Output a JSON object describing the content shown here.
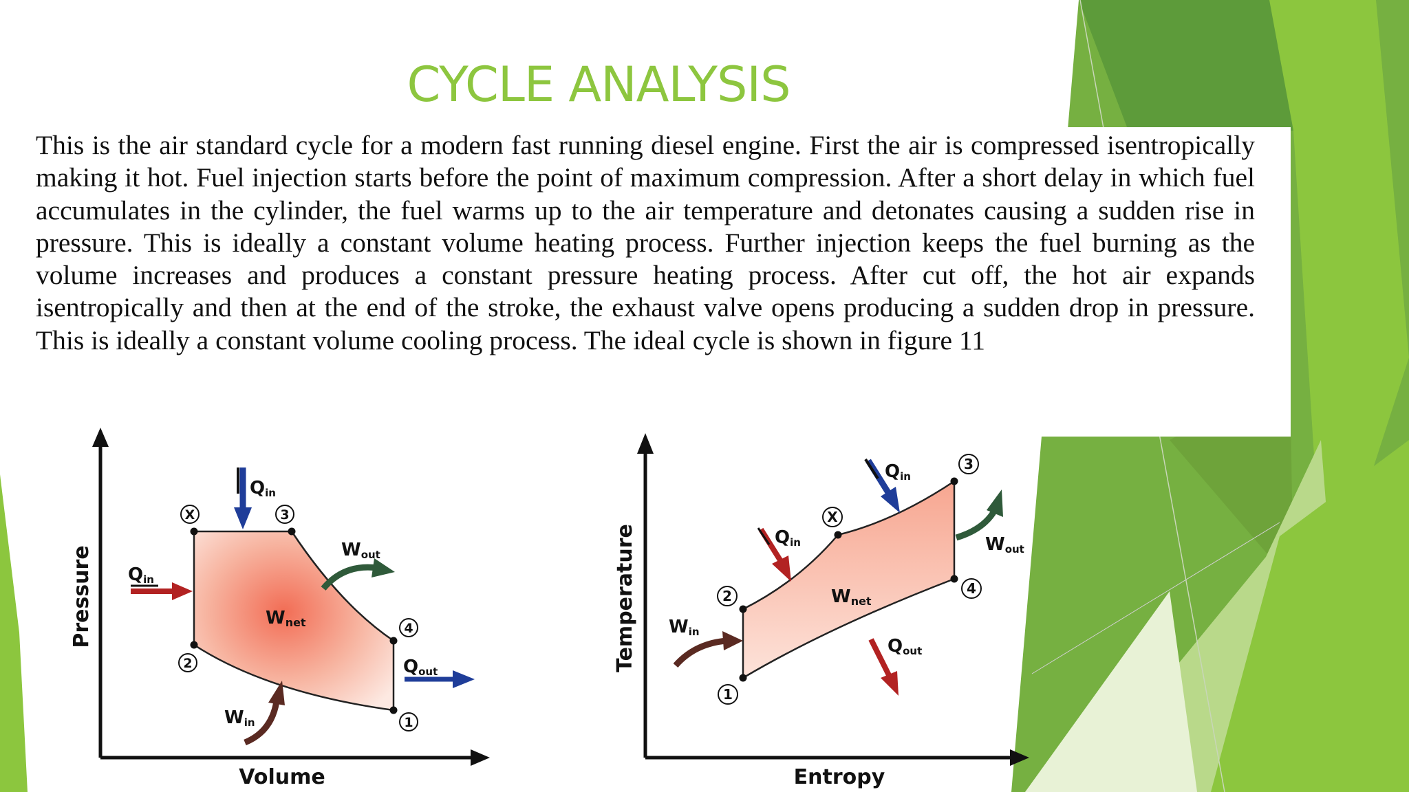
{
  "slide": {
    "title": "CYCLE ANALYSIS",
    "body": "This is the air standard cycle for a modern fast running diesel engine. First the air is compressed isentropically making it hot. Fuel injection starts before the point of maximum compression. After a short delay in which fuel accumulates in the cylinder, the fuel warms up to the air temperature and detonates causing a sudden rise in pressure. This is ideally a constant volume heating process. Further injection keeps the fuel burning as the volume increases and produces a constant pressure heating process. After cut off, the hot air expands isentropically and then at the end of the stroke, the exhaust valve opens producing a sudden drop in pressure. This is ideally a constant volume cooling process.  The ideal cycle is shown in figure 11"
  },
  "pv_diagram": {
    "x_axis": "Volume",
    "y_axis": "Pressure",
    "points": [
      "X",
      "3",
      "2",
      "4",
      "1"
    ],
    "w_net": "W",
    "w_net_sub": "net",
    "q_in_top": "Q",
    "q_in_top_sub": "in",
    "q_in_left": "Q",
    "q_in_left_sub": "in",
    "w_out": "W",
    "w_out_sub": "out",
    "q_out": "Q",
    "q_out_sub": "out",
    "w_in": "W",
    "w_in_sub": "in"
  },
  "ts_diagram": {
    "x_axis": "Entropy",
    "y_axis": "Temperature",
    "points": [
      "3",
      "X",
      "2",
      "4",
      "1"
    ],
    "w_net": "W",
    "w_net_sub": "net",
    "q_in_top": "Q",
    "q_in_top_sub": "in",
    "q_in_left": "Q",
    "q_in_left_sub": "in",
    "w_out": "W",
    "w_out_sub": "out",
    "q_out": "Q",
    "q_out_sub": "out",
    "w_in": "W",
    "w_in_sub": "in"
  },
  "colors": {
    "title": "#8dc63f",
    "fill": "#f7b4a0",
    "heat_in_arrow": "#1f3d99",
    "heat_out_arrow": "#1f3d99",
    "work_out_arrow": "#2f5a3a",
    "work_in_arrow": "#5a2a22",
    "ts_heat_arrow": "#b22222"
  }
}
